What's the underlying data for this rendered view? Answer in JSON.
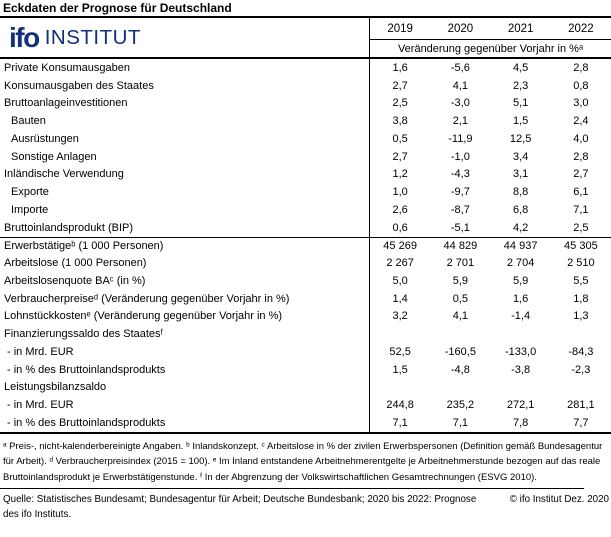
{
  "title": "Eckdaten der Prognose für Deutschland",
  "colors": {
    "navy": "#12317D"
  },
  "logo": {
    "ifo": "ifo",
    "institut": "INSTITUT"
  },
  "table": {
    "years": [
      "2019",
      "2020",
      "2021",
      "2022"
    ],
    "subheader": "Veränderung gegenüber Vorjahr in %ᵃ",
    "rows": [
      {
        "label": "Private Konsumausgaben",
        "indent": 0,
        "values": [
          "1,6",
          "-5,6",
          "4,5",
          "2,8"
        ]
      },
      {
        "label": "Konsumausgaben des Staates",
        "indent": 0,
        "values": [
          "2,7",
          "4,1",
          "2,3",
          "0,8"
        ]
      },
      {
        "label": "Bruttoanlageinvestitionen",
        "indent": 0,
        "values": [
          "2,5",
          "-3,0",
          "5,1",
          "3,0"
        ]
      },
      {
        "label": "Bauten",
        "indent": 1,
        "values": [
          "3,8",
          "2,1",
          "1,5",
          "2,4"
        ]
      },
      {
        "label": "Ausrüstungen",
        "indent": 1,
        "values": [
          "0,5",
          "-11,9",
          "12,5",
          "4,0"
        ]
      },
      {
        "label": "Sonstige Anlagen",
        "indent": 1,
        "values": [
          "2,7",
          "-1,0",
          "3,4",
          "2,8"
        ]
      },
      {
        "label": "Inländische Verwendung",
        "indent": 0,
        "values": [
          "1,2",
          "-4,3",
          "3,1",
          "2,7"
        ]
      },
      {
        "label": "Exporte",
        "indent": 1,
        "values": [
          "1,0",
          "-9,7",
          "8,8",
          "6,1"
        ]
      },
      {
        "label": "Importe",
        "indent": 1,
        "values": [
          "2,6",
          "-8,7",
          "6,8",
          "7,1"
        ]
      },
      {
        "label": "Bruttoinlandsprodukt (BIP)",
        "indent": 0,
        "values": [
          "0,6",
          "-5,1",
          "4,2",
          "2,5"
        ]
      },
      {
        "label": "Erwerbstätigeᵇ (1 000 Personen)",
        "indent": 0,
        "section_start": true,
        "values": [
          "45 269",
          "44 829",
          "44 937",
          "45 305"
        ]
      },
      {
        "label": "Arbeitslose (1 000 Personen)",
        "indent": 0,
        "values": [
          "2 267",
          "2 701",
          "2 704",
          "2 510"
        ]
      },
      {
        "label": "Arbeitslosenquote BAᶜ (in %)",
        "indent": 0,
        "values": [
          "5,0",
          "5,9",
          "5,9",
          "5,5"
        ]
      },
      {
        "label": "Verbraucherpreiseᵈ (Veränderung gegenüber Vorjahr in %)",
        "indent": 0,
        "values": [
          "1,4",
          "0,5",
          "1,6",
          "1,8"
        ]
      },
      {
        "label": "Lohnstückkostenᵉ (Veränderung gegenüber Vorjahr in %)",
        "indent": 0,
        "values": [
          "3,2",
          "4,1",
          "-1,4",
          "1,3"
        ]
      },
      {
        "label": "Finanzierungssaldo des Staatesᶠ",
        "indent": 0,
        "values": [
          "",
          "",
          "",
          ""
        ]
      },
      {
        "label": "- in Mrd. EUR",
        "indent": 2,
        "values": [
          "52,5",
          "-160,5",
          "-133,0",
          "-84,3"
        ]
      },
      {
        "label": "- in % des Bruttoinlandsprodukts",
        "indent": 2,
        "values": [
          "1,5",
          "-4,8",
          "-3,8",
          "-2,3"
        ]
      },
      {
        "label": "Leistungsbilanzsaldo",
        "indent": 0,
        "values": [
          "",
          "",
          "",
          ""
        ]
      },
      {
        "label": "- in Mrd. EUR",
        "indent": 2,
        "values": [
          "244,8",
          "235,2",
          "272,1",
          "281,1"
        ]
      },
      {
        "label": "- in % des Bruttoinlandsprodukts",
        "indent": 2,
        "values": [
          "7,1",
          "7,1",
          "7,8",
          "7,7"
        ]
      }
    ]
  },
  "footnotes": "ᵃ Preis-, nicht-kalenderbereinigte Angaben. ᵇ Inlandskonzept. ᶜ Arbeitslose in % der zivilen Erwerbspersonen (Definition gemäß Bundesagentur für Arbeit). ᵈ Verbraucherpreisindex (2015 = 100). ᵉ Im Inland entstandene Arbeitnehmerentgelte je Arbeitnehmerstunde bezogen auf das reale Bruttoinlandsprodukt je Erwerbstätigenstunde. ᶠ In der Abgrenzung der Volkswirtschaftlichen Gesamtrechnungen (ESVG 2010).",
  "source": {
    "left": "Quelle: Statistisches Bundesamt; Bundesagentur für Arbeit; Deutsche Bundesbank; 2020 bis 2022: Prognose des ifo Instituts.",
    "right": "© ifo Institut Dez. 2020"
  }
}
